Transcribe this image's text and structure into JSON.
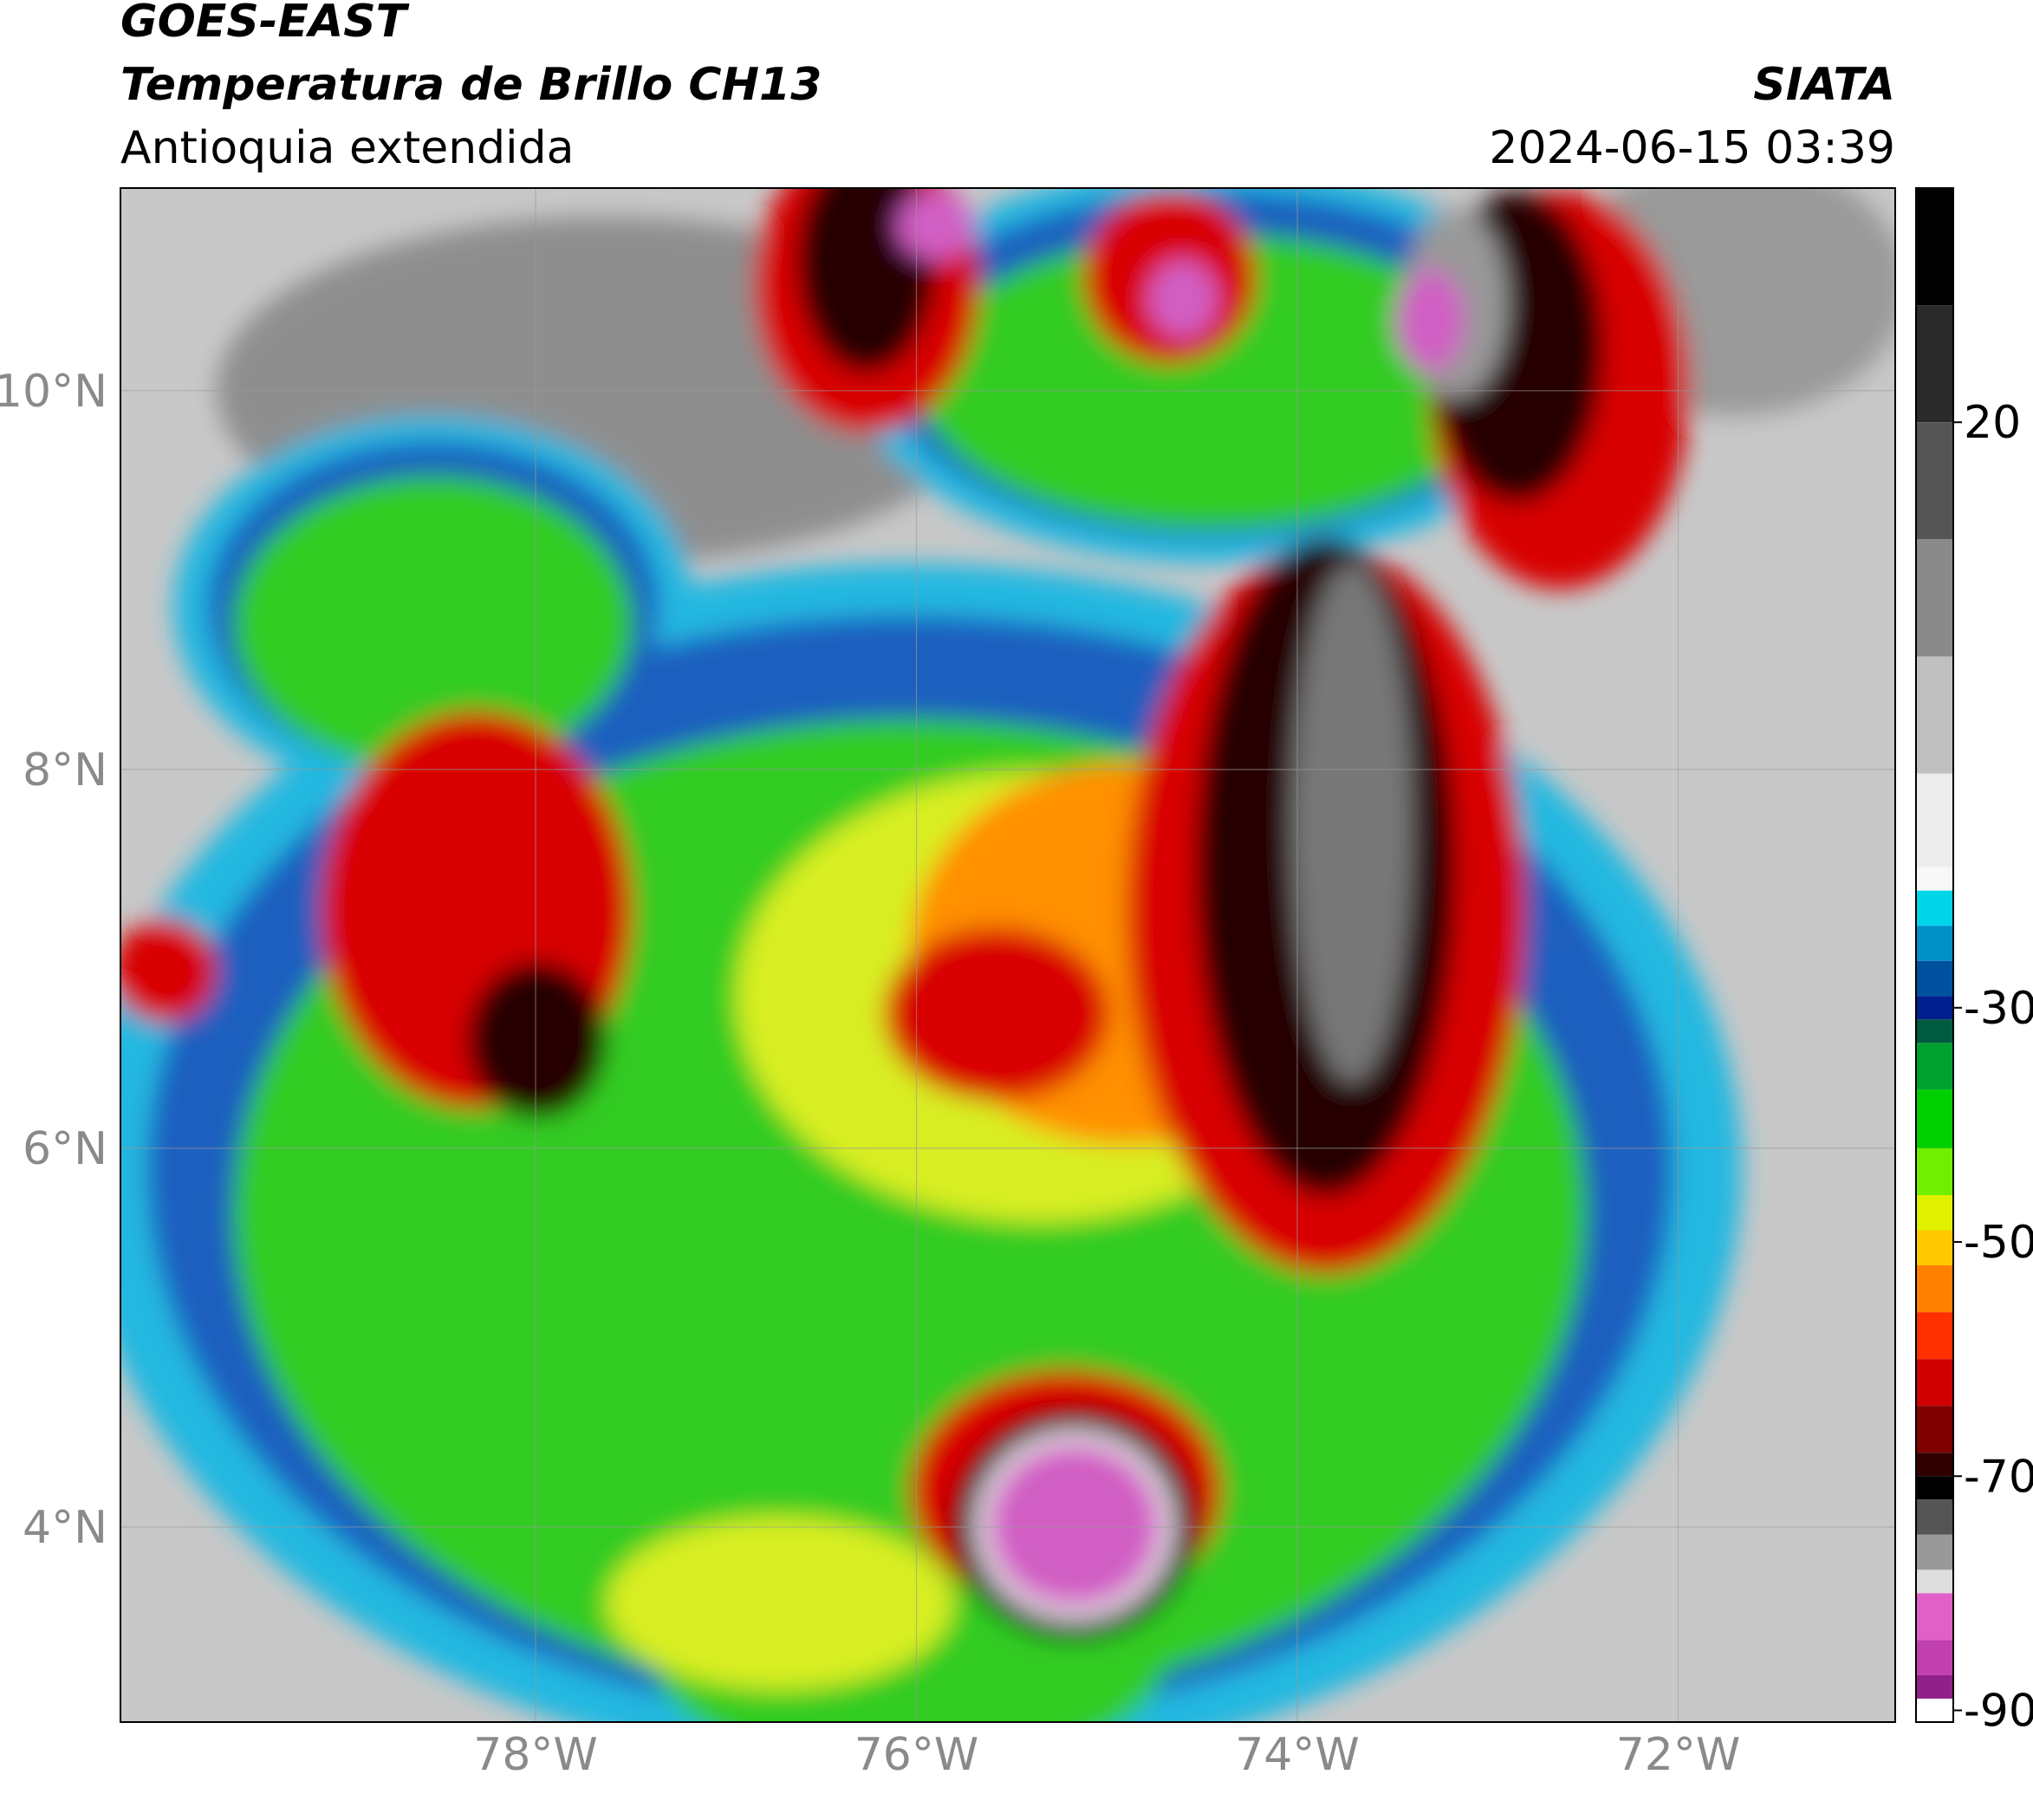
{
  "header": {
    "title": "GOES-EAST",
    "subtitle": "Temperatura de Brillo CH13",
    "region": "Antioquia extendida",
    "source": "SIATA",
    "datetime": "2024-06-15 03:39"
  },
  "map": {
    "xlim": [
      -80.18,
      -70.86
    ],
    "ylim": [
      2.97,
      11.07
    ],
    "xticks": [
      {
        "value": -78,
        "label": "78°W"
      },
      {
        "value": -76,
        "label": "76°W"
      },
      {
        "value": -74,
        "label": "74°W"
      },
      {
        "value": -72,
        "label": "72°W"
      }
    ],
    "yticks": [
      {
        "value": 4,
        "label": "4°N"
      },
      {
        "value": 6,
        "label": "6°N"
      },
      {
        "value": 8,
        "label": "8°N"
      },
      {
        "value": 10,
        "label": "10°N"
      }
    ],
    "grid": true,
    "colorbar": {
      "range": [
        -91,
        40
      ],
      "ticks": [
        20,
        -30,
        -50,
        -70,
        -90
      ],
      "colors": [
        {
          "value": 40,
          "color": "#000000"
        },
        {
          "value": 30,
          "color": "#2a2a2a"
        },
        {
          "value": 20,
          "color": "#555555"
        },
        {
          "value": 10,
          "color": "#8a8a8a"
        },
        {
          "value": 0,
          "color": "#c0c0c0"
        },
        {
          "value": -10,
          "color": "#ececec"
        },
        {
          "value": -18,
          "color": "#f8f8f8"
        },
        {
          "value": -20,
          "color": "#00d4e8"
        },
        {
          "value": -23,
          "color": "#0090c8"
        },
        {
          "value": -26,
          "color": "#0050a0"
        },
        {
          "value": -29,
          "color": "#001f8f"
        },
        {
          "value": -31,
          "color": "#005a40"
        },
        {
          "value": -33,
          "color": "#00a030"
        },
        {
          "value": -37,
          "color": "#00d000"
        },
        {
          "value": -42,
          "color": "#70f000"
        },
        {
          "value": -46,
          "color": "#e0f000"
        },
        {
          "value": -49,
          "color": "#ffc800"
        },
        {
          "value": -52,
          "color": "#ff8000"
        },
        {
          "value": -56,
          "color": "#ff3000"
        },
        {
          "value": -60,
          "color": "#d00000"
        },
        {
          "value": -64,
          "color": "#800000"
        },
        {
          "value": -68,
          "color": "#300000"
        },
        {
          "value": -70,
          "color": "#000000"
        },
        {
          "value": -72,
          "color": "#555555"
        },
        {
          "value": -75,
          "color": "#999999"
        },
        {
          "value": -78,
          "color": "#dddddd"
        },
        {
          "value": -80,
          "color": "#e060c8"
        },
        {
          "value": -84,
          "color": "#c040b0"
        },
        {
          "value": -87,
          "color": "#90208a"
        },
        {
          "value": -89,
          "color": "#ffffff"
        }
      ]
    }
  }
}
